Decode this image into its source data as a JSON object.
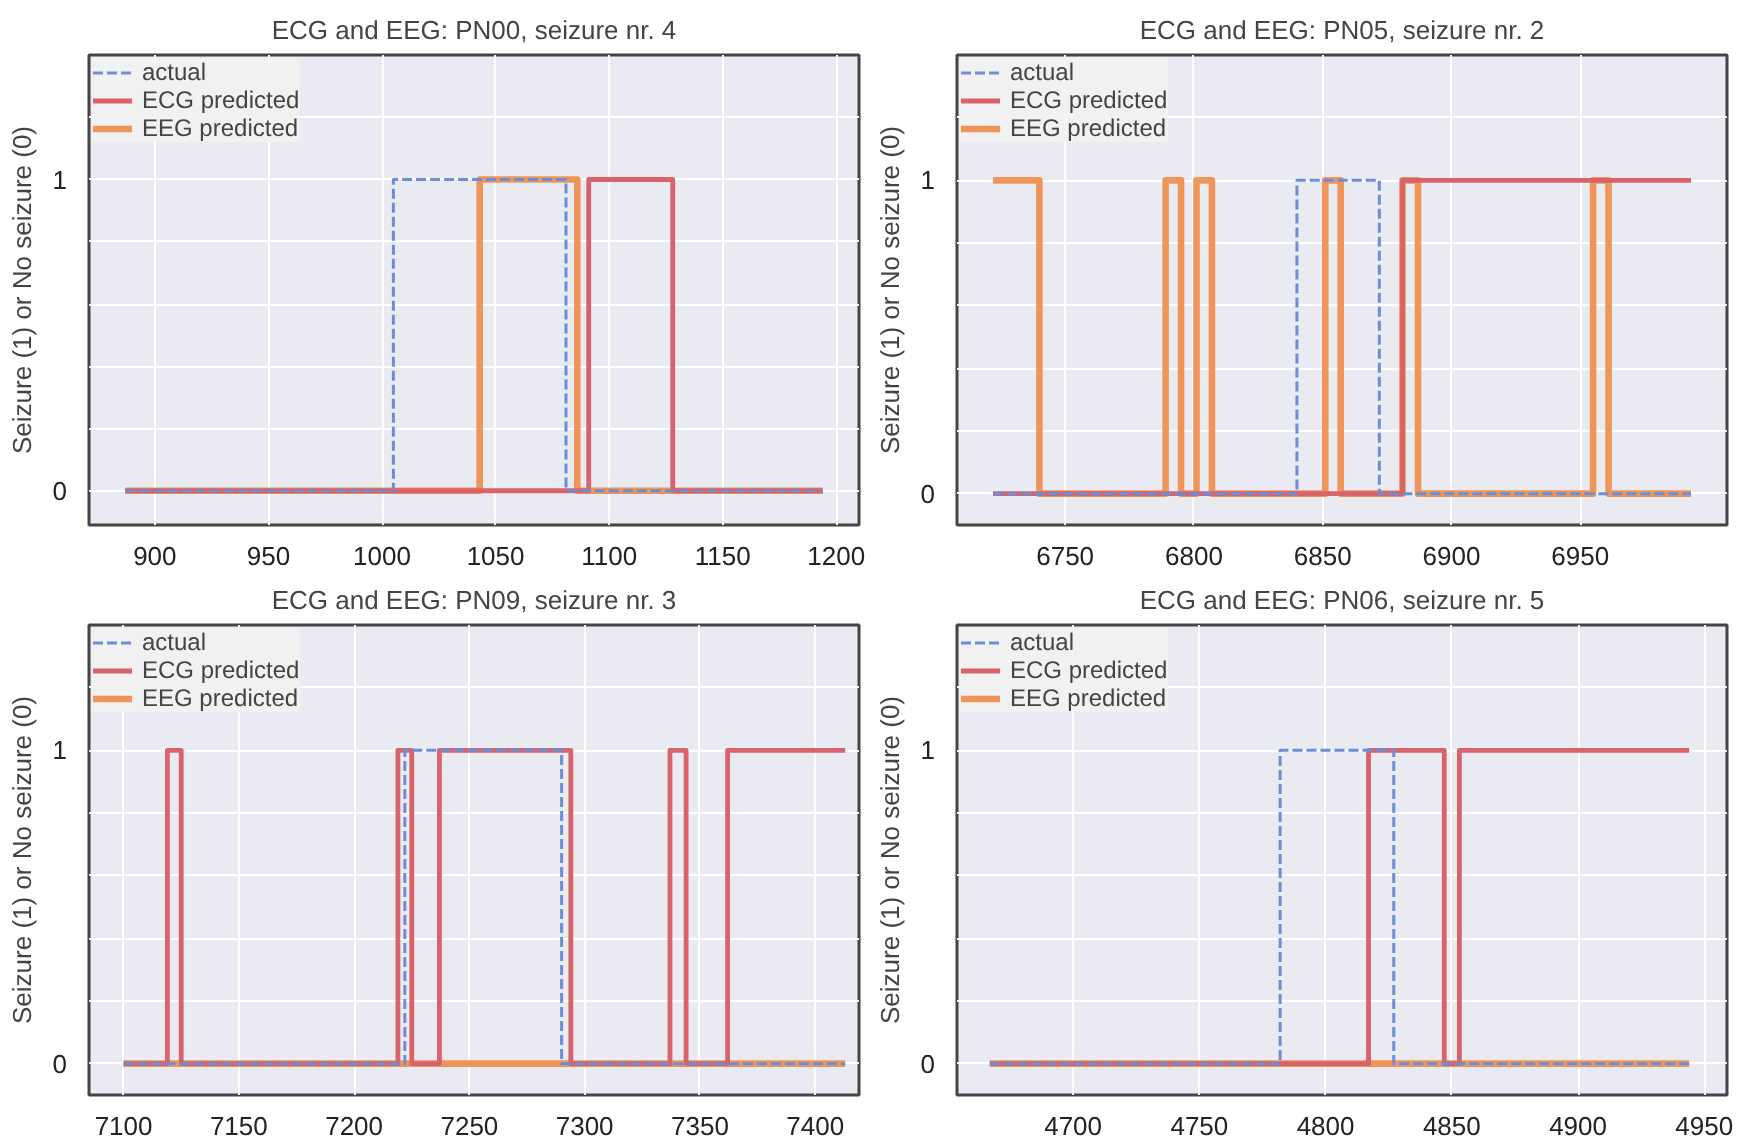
{
  "chart_data": [
    {
      "type": "line",
      "title": "ECG and EEG: PN00, seizure nr. 4",
      "ylabel": "Seizure (1) or No seizure (0)",
      "xlim": [
        871,
        1210
      ],
      "ylim": [
        -0.11,
        1.4
      ],
      "xticks": [
        900,
        950,
        1000,
        1050,
        1100,
        1150,
        1200
      ],
      "yticks": [
        0,
        {
          "value": 0.2,
          "label": null
        },
        {
          "value": 0.4,
          "label": null
        },
        {
          "value": 0.6,
          "label": null
        },
        {
          "value": 0.8,
          "label": null
        },
        1,
        {
          "value": 1.2,
          "label": null
        }
      ],
      "grid": true,
      "legend": "top left",
      "series": [
        {
          "name": "actual",
          "color": "#6a8fd6",
          "line_style": "dashed",
          "x": [
            887,
            1005,
            1005,
            1081,
            1081,
            1194
          ],
          "values": [
            0,
            0,
            1,
            1,
            0,
            0
          ]
        },
        {
          "name": "ECG predicted",
          "color": "#d9636b",
          "line_style": "solid",
          "x": [
            887,
            1091,
            1091,
            1128,
            1128,
            1194
          ],
          "values": [
            0,
            0,
            1,
            1,
            0,
            0
          ]
        },
        {
          "name": "EEG predicted",
          "color": "#f0955a",
          "line_style": "solid",
          "x": [
            887,
            1043,
            1043,
            1086,
            1086,
            1194
          ],
          "values": [
            0,
            0,
            1,
            1,
            0,
            0
          ]
        }
      ]
    },
    {
      "type": "line",
      "title": "ECG and EEG: PN05, seizure nr. 2",
      "ylabel": "Seizure (1) or No seizure (0)",
      "xlim": [
        6708,
        7007
      ],
      "ylim": [
        -0.1,
        1.4
      ],
      "xticks": [
        6750,
        6800,
        6850,
        6900,
        6950
      ],
      "yticks": [
        0,
        {
          "value": 0.2,
          "label": null
        },
        {
          "value": 0.4,
          "label": null
        },
        {
          "value": 0.6,
          "label": null
        },
        {
          "value": 0.8,
          "label": null
        },
        1,
        {
          "value": 1.2,
          "label": null
        }
      ],
      "grid": true,
      "legend": "top left",
      "series": [
        {
          "name": "actual",
          "color": "#6a8fd6",
          "line_style": "dashed",
          "x": [
            6722,
            6840,
            6840,
            6872,
            6872,
            6993
          ],
          "values": [
            0,
            0,
            1,
            1,
            0,
            0
          ]
        },
        {
          "name": "ECG predicted",
          "color": "#d9636b",
          "line_style": "solid",
          "x": [
            6722,
            6881,
            6881,
            6993
          ],
          "values": [
            0,
            0,
            1,
            1
          ]
        },
        {
          "name": "EEG predicted",
          "color": "#f0955a",
          "line_style": "solid",
          "x": [
            6722,
            6740,
            6740,
            6789,
            6789,
            6795,
            6795,
            6801,
            6801,
            6807,
            6807,
            6851,
            6851,
            6857,
            6857,
            6881,
            6881,
            6887,
            6887,
            6955,
            6955,
            6961,
            6961,
            6993
          ],
          "values": [
            1,
            1,
            0,
            0,
            1,
            1,
            0,
            0,
            1,
            1,
            0,
            0,
            1,
            1,
            0,
            0,
            1,
            1,
            0,
            0,
            1,
            1,
            0,
            0
          ]
        }
      ]
    },
    {
      "type": "line",
      "title": "ECG and EEG: PN09, seizure nr. 3",
      "ylabel": "Seizure (1) or No seizure (0)",
      "xlim": [
        7085,
        7419
      ],
      "ylim": [
        -0.1,
        1.4
      ],
      "xticks": [
        7100,
        7150,
        7200,
        7250,
        7300,
        7350,
        7400
      ],
      "yticks": [
        0,
        {
          "value": 0.2,
          "label": null
        },
        {
          "value": 0.4,
          "label": null
        },
        {
          "value": 0.6,
          "label": null
        },
        {
          "value": 0.8,
          "label": null
        },
        1,
        {
          "value": 1.2,
          "label": null
        }
      ],
      "grid": true,
      "legend": "top left",
      "series": [
        {
          "name": "actual",
          "color": "#6a8fd6",
          "line_style": "dashed",
          "x": [
            7100,
            7222,
            7222,
            7290,
            7290,
            7413
          ],
          "values": [
            0,
            0,
            1,
            1,
            0,
            0
          ]
        },
        {
          "name": "ECG predicted",
          "color": "#d9636b",
          "line_style": "solid",
          "x": [
            7100,
            7119,
            7119,
            7125,
            7125,
            7219,
            7219,
            7225,
            7225,
            7237,
            7237,
            7294,
            7294,
            7337,
            7337,
            7344,
            7344,
            7362,
            7362,
            7413
          ],
          "values": [
            0,
            0,
            1,
            1,
            0,
            0,
            1,
            1,
            0,
            0,
            1,
            1,
            0,
            0,
            1,
            1,
            0,
            0,
            1,
            1
          ]
        },
        {
          "name": "EEG predicted",
          "color": "#f0955a",
          "line_style": "solid",
          "x": [
            7100,
            7413
          ],
          "values": [
            0,
            0
          ]
        }
      ]
    },
    {
      "type": "line",
      "title": "ECG and EEG: PN06, seizure nr. 5",
      "ylabel": "Seizure (1) or No seizure (0)",
      "xlim": [
        4654,
        4959
      ],
      "ylim": [
        -0.1,
        1.4
      ],
      "xticks": [
        4700,
        4750,
        4800,
        4850,
        4900,
        4950
      ],
      "yticks": [
        0,
        {
          "value": 0.2,
          "label": null
        },
        {
          "value": 0.4,
          "label": null
        },
        {
          "value": 0.6,
          "label": null
        },
        {
          "value": 0.8,
          "label": null
        },
        1,
        {
          "value": 1.2,
          "label": null
        }
      ],
      "grid": true,
      "legend": "top left",
      "series": [
        {
          "name": "actual",
          "color": "#6a8fd6",
          "line_style": "dashed",
          "x": [
            4667,
            4782,
            4782,
            4827,
            4827,
            4944
          ],
          "values": [
            0,
            0,
            1,
            1,
            0,
            0
          ]
        },
        {
          "name": "ECG predicted",
          "color": "#d9636b",
          "line_style": "solid",
          "x": [
            4667,
            4817,
            4817,
            4847,
            4847,
            4853,
            4853,
            4944
          ],
          "values": [
            0,
            0,
            1,
            1,
            0,
            0,
            1,
            1
          ]
        },
        {
          "name": "EEG predicted",
          "color": "#f0955a",
          "line_style": "solid",
          "x": [
            4667,
            4944
          ],
          "values": [
            0,
            0
          ]
        }
      ]
    }
  ]
}
